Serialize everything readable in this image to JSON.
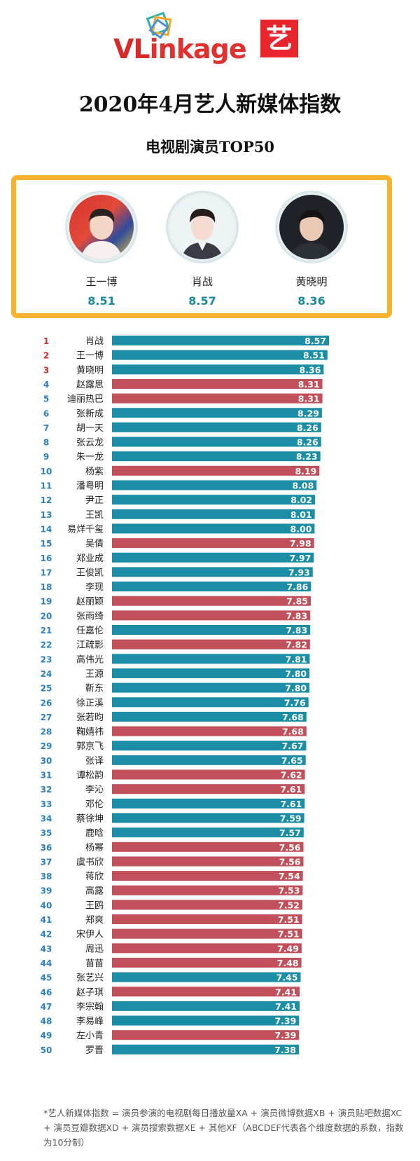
{
  "brand": {
    "logo_v": "VL",
    "logo_rest": "inkage",
    "badge": "艺"
  },
  "title": "2020年4月艺人新媒体指数",
  "subtitle": "电视剧演员TOP50",
  "top3": [
    {
      "name": "王一博",
      "score": "8.51"
    },
    {
      "name": "肖战",
      "score": "8.57"
    },
    {
      "name": "黄晓明",
      "score": "8.36"
    }
  ],
  "colors": {
    "blue": "#1b8ea5",
    "red": "#c2505a",
    "rank_top": "#d42a2a",
    "rank": "#2a7fc0"
  },
  "chart_data": {
    "type": "bar",
    "orientation": "horizontal",
    "xlim": [
      0,
      8.57
    ],
    "rows": [
      {
        "rank": 1,
        "name": "肖战",
        "value": 8.57,
        "color": "blue"
      },
      {
        "rank": 2,
        "name": "王一博",
        "value": 8.51,
        "color": "blue"
      },
      {
        "rank": 3,
        "name": "黄晓明",
        "value": 8.36,
        "color": "blue"
      },
      {
        "rank": 4,
        "name": "赵露思",
        "value": 8.31,
        "color": "red"
      },
      {
        "rank": 5,
        "name": "迪丽热巴",
        "value": 8.31,
        "color": "red"
      },
      {
        "rank": 6,
        "name": "张新成",
        "value": 8.29,
        "color": "blue"
      },
      {
        "rank": 7,
        "name": "胡一天",
        "value": 8.26,
        "color": "blue"
      },
      {
        "rank": 8,
        "name": "张云龙",
        "value": 8.26,
        "color": "blue"
      },
      {
        "rank": 9,
        "name": "朱一龙",
        "value": 8.23,
        "color": "blue"
      },
      {
        "rank": 10,
        "name": "杨紫",
        "value": 8.19,
        "color": "red"
      },
      {
        "rank": 11,
        "name": "潘粤明",
        "value": 8.08,
        "color": "blue"
      },
      {
        "rank": 12,
        "name": "尹正",
        "value": 8.02,
        "color": "blue"
      },
      {
        "rank": 13,
        "name": "王凯",
        "value": 8.01,
        "color": "blue"
      },
      {
        "rank": 14,
        "name": "易烊千玺",
        "value": 8.0,
        "color": "blue"
      },
      {
        "rank": 15,
        "name": "吴倩",
        "value": 7.98,
        "color": "red"
      },
      {
        "rank": 16,
        "name": "郑业成",
        "value": 7.97,
        "color": "blue"
      },
      {
        "rank": 17,
        "name": "王俊凯",
        "value": 7.93,
        "color": "blue"
      },
      {
        "rank": 18,
        "name": "李现",
        "value": 7.86,
        "color": "blue"
      },
      {
        "rank": 19,
        "name": "赵丽颖",
        "value": 7.85,
        "color": "red"
      },
      {
        "rank": 20,
        "name": "张雨绮",
        "value": 7.83,
        "color": "red"
      },
      {
        "rank": 21,
        "name": "任嘉伦",
        "value": 7.83,
        "color": "blue"
      },
      {
        "rank": 22,
        "name": "江疏影",
        "value": 7.82,
        "color": "red"
      },
      {
        "rank": 23,
        "name": "高伟光",
        "value": 7.81,
        "color": "blue"
      },
      {
        "rank": 24,
        "name": "王源",
        "value": 7.8,
        "color": "blue"
      },
      {
        "rank": 25,
        "name": "靳东",
        "value": 7.8,
        "color": "blue"
      },
      {
        "rank": 26,
        "name": "徐正溪",
        "value": 7.76,
        "color": "blue"
      },
      {
        "rank": 27,
        "name": "张若昀",
        "value": 7.68,
        "color": "blue"
      },
      {
        "rank": 28,
        "name": "鞠婧祎",
        "value": 7.68,
        "color": "red"
      },
      {
        "rank": 29,
        "name": "郭京飞",
        "value": 7.67,
        "color": "blue"
      },
      {
        "rank": 30,
        "name": "张译",
        "value": 7.65,
        "color": "blue"
      },
      {
        "rank": 31,
        "name": "谭松韵",
        "value": 7.62,
        "color": "red"
      },
      {
        "rank": 32,
        "name": "李沁",
        "value": 7.61,
        "color": "red"
      },
      {
        "rank": 33,
        "name": "邓伦",
        "value": 7.61,
        "color": "blue"
      },
      {
        "rank": 34,
        "name": "蔡徐坤",
        "value": 7.59,
        "color": "blue"
      },
      {
        "rank": 35,
        "name": "鹿晗",
        "value": 7.57,
        "color": "blue"
      },
      {
        "rank": 36,
        "name": "杨幂",
        "value": 7.56,
        "color": "red"
      },
      {
        "rank": 37,
        "name": "虞书欣",
        "value": 7.56,
        "color": "red"
      },
      {
        "rank": 38,
        "name": "蒋欣",
        "value": 7.54,
        "color": "red"
      },
      {
        "rank": 39,
        "name": "高露",
        "value": 7.53,
        "color": "red"
      },
      {
        "rank": 40,
        "name": "王鸥",
        "value": 7.52,
        "color": "red"
      },
      {
        "rank": 41,
        "name": "郑爽",
        "value": 7.51,
        "color": "red"
      },
      {
        "rank": 42,
        "name": "宋伊人",
        "value": 7.51,
        "color": "red"
      },
      {
        "rank": 43,
        "name": "周迅",
        "value": 7.49,
        "color": "red"
      },
      {
        "rank": 44,
        "name": "苗苗",
        "value": 7.48,
        "color": "red"
      },
      {
        "rank": 45,
        "name": "张艺兴",
        "value": 7.45,
        "color": "blue"
      },
      {
        "rank": 46,
        "name": "赵子琪",
        "value": 7.41,
        "color": "red"
      },
      {
        "rank": 47,
        "name": "李宗翰",
        "value": 7.41,
        "color": "blue"
      },
      {
        "rank": 48,
        "name": "李易峰",
        "value": 7.39,
        "color": "blue"
      },
      {
        "rank": 49,
        "name": "左小青",
        "value": 7.39,
        "color": "red"
      },
      {
        "rank": 50,
        "name": "罗晋",
        "value": 7.38,
        "color": "blue"
      }
    ]
  },
  "footnote": "*艺人新媒体指数 = 演员参演的电视剧每日播放量XA + 演员微博数据XB + 演员贴吧数据XC + 演员豆瓣数据XD + 演员搜索数据XE + 其他XF（ABCDEF代表各个维度数据的系数，指数为10分制）"
}
